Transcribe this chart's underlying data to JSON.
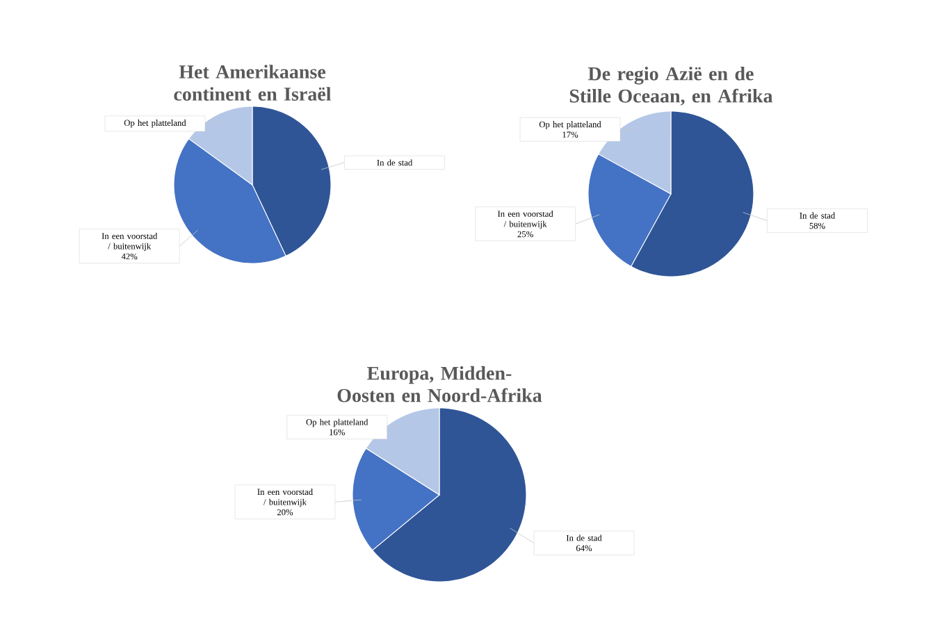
{
  "chart_data": [
    {
      "type": "pie",
      "title": "Het Amerikaanse continent en Israël",
      "categories": [
        "In de stad",
        "In een voorstad / buitenwijk",
        "Op het platteland"
      ],
      "values": [
        43,
        42,
        15
      ],
      "colors": [
        "#2f5597",
        "#4472c4",
        "#b4c7e7"
      ],
      "value_labels": [
        null,
        "42%",
        null
      ]
    },
    {
      "type": "pie",
      "title": "De regio Azië en de Stille Oceaan, en Afrika",
      "categories": [
        "In de stad",
        "In een voorstad / buitenwijk",
        "Op het platteland"
      ],
      "values": [
        58,
        25,
        17
      ],
      "colors": [
        "#2f5597",
        "#4472c4",
        "#b4c7e7"
      ],
      "value_labels": [
        "58%",
        "25%",
        "17%"
      ]
    },
    {
      "type": "pie",
      "title": "Europa, Midden-Oosten en Noord-Afrika",
      "categories": [
        "In de stad",
        "In een voorstad / buitenwijk",
        "Op het platteland"
      ],
      "values": [
        64,
        20,
        16
      ],
      "colors": [
        "#2f5597",
        "#4472c4",
        "#b4c7e7"
      ],
      "value_labels": [
        "64%",
        "20%",
        "16%"
      ]
    }
  ]
}
